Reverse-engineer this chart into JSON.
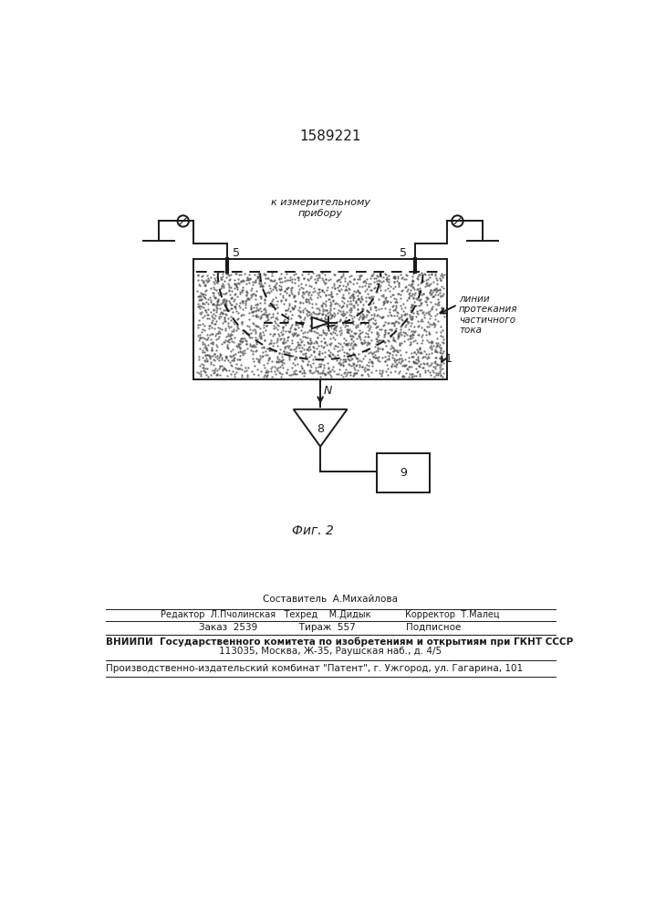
{
  "title": "1589221",
  "fig_label": "Фиг. 2",
  "bg_color": "#ffffff",
  "line_color": "#1a1a1a",
  "label_connector": "к измерительному\nприбору",
  "label_lines": "линии\nпротекания\nчастичного\nтока",
  "label_5_left": "5",
  "label_5_right": "5",
  "label_1": "1",
  "label_8": "8",
  "label_9": "9",
  "label_N": "N",
  "footer_line1": "Составитель  А.Михайлова",
  "footer_line2": "Редактор  Л.Пчолинская   Техред    М.Дидык            Корректор  Т.Малец",
  "footer_line3": "Заказ  2539              Тираж  557                 Подписное",
  "footer_line4": "ВНИИПИ  Государственного комитета по изобретениям и открытиям при ГКНТ СССР",
  "footer_line5": "113035, Москва, Ж-35, Раушская наб., д. 4/5",
  "footer_line6": "Производственно-издательский комбинат \"Патент\", г. Ужгород, ул. Гагарина, 101"
}
